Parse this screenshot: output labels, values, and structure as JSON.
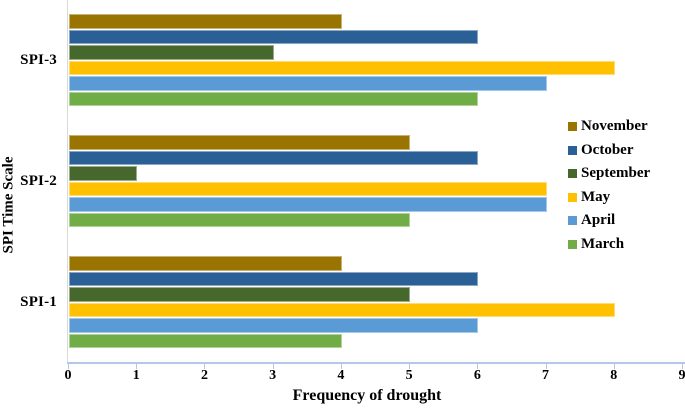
{
  "chart_data": {
    "type": "bar",
    "orientation": "horizontal",
    "title": "",
    "xlabel": "Frequency of drought",
    "ylabel": "SPI Time Scale",
    "xlim": [
      0,
      9
    ],
    "xticks": [
      0,
      1,
      2,
      3,
      4,
      5,
      6,
      7,
      8,
      9
    ],
    "grid": false,
    "legend_position": "right",
    "categories_top_to_bottom": [
      "SPI-3",
      "SPI-2",
      "SPI-1"
    ],
    "series": [
      {
        "name": "November",
        "color": "#9A7400",
        "values_by_category": [
          4,
          5,
          4
        ]
      },
      {
        "name": "October",
        "color": "#2A6095",
        "values_by_category": [
          6,
          6,
          6
        ]
      },
      {
        "name": "September",
        "color": "#47682C",
        "values_by_category": [
          3,
          1,
          5
        ]
      },
      {
        "name": "May",
        "color": "#FFC000",
        "values_by_category": [
          8,
          7,
          8
        ]
      },
      {
        "name": "April",
        "color": "#5B9BD5",
        "values_by_category": [
          7,
          7,
          6
        ]
      },
      {
        "name": "March",
        "color": "#70AD47",
        "values_by_category": [
          6,
          5,
          4
        ]
      }
    ],
    "legend_entries": [
      "November",
      "October",
      "September",
      "May",
      "April",
      "March"
    ],
    "axis_colors": {
      "x_axis_line": "#B4C7E7",
      "y_axis_line": "#D9D9D9",
      "text": "#000000"
    }
  }
}
